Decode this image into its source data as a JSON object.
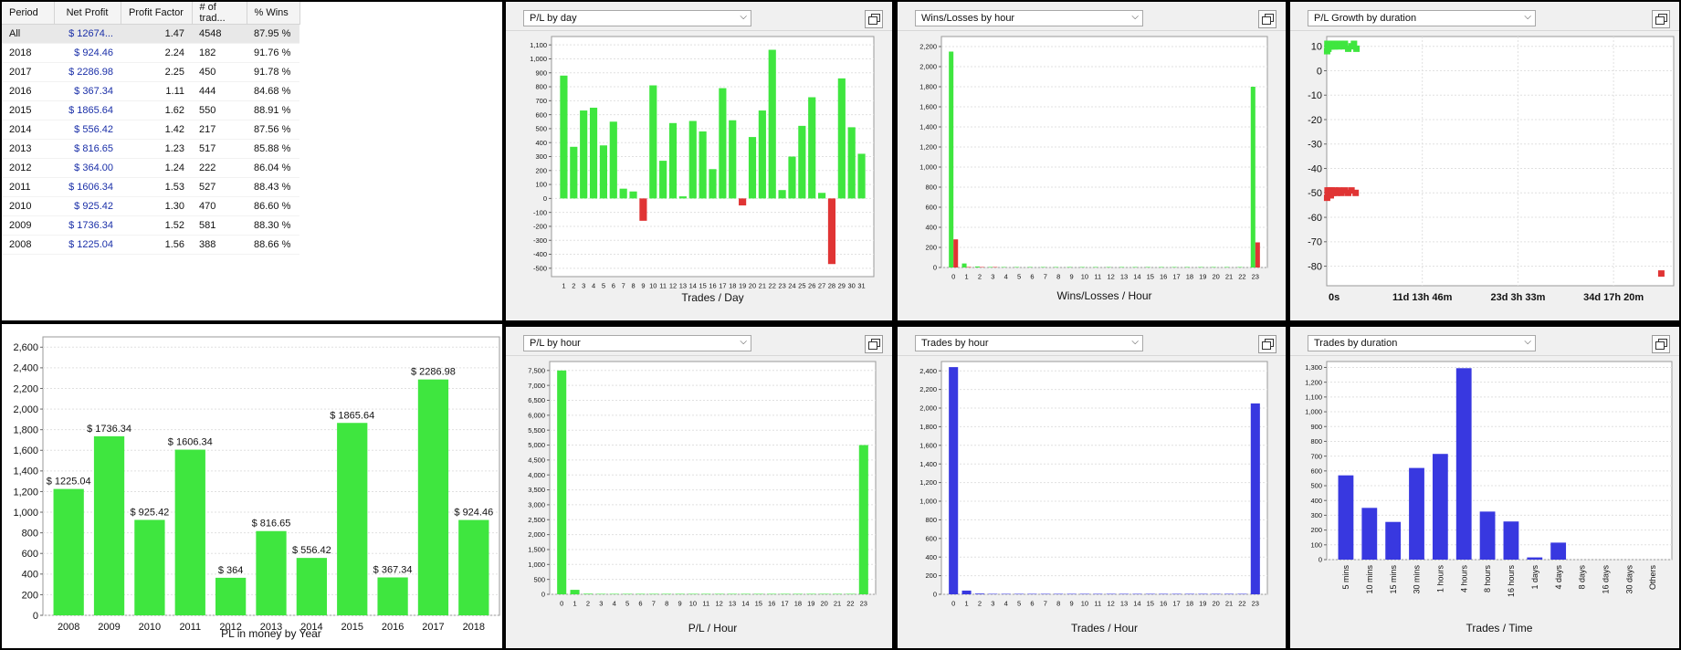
{
  "stats_table": {
    "headers": [
      "Period",
      "Net Profit",
      "Profit Factor",
      "# of trad...",
      "% Wins"
    ],
    "rows": [
      {
        "period": "All",
        "net_profit": "$ 12674...",
        "profit_factor": "1.47",
        "trades": "4548",
        "wins": "87.95 %"
      },
      {
        "period": "2018",
        "net_profit": "$ 924.46",
        "profit_factor": "2.24",
        "trades": "182",
        "wins": "91.76 %"
      },
      {
        "period": "2017",
        "net_profit": "$ 2286.98",
        "profit_factor": "2.25",
        "trades": "450",
        "wins": "91.78 %"
      },
      {
        "period": "2016",
        "net_profit": "$ 367.34",
        "profit_factor": "1.11",
        "trades": "444",
        "wins": "84.68 %"
      },
      {
        "period": "2015",
        "net_profit": "$ 1865.64",
        "profit_factor": "1.62",
        "trades": "550",
        "wins": "88.91 %"
      },
      {
        "period": "2014",
        "net_profit": "$ 556.42",
        "profit_factor": "1.42",
        "trades": "217",
        "wins": "87.56 %"
      },
      {
        "period": "2013",
        "net_profit": "$ 816.65",
        "profit_factor": "1.23",
        "trades": "517",
        "wins": "85.88 %"
      },
      {
        "period": "2012",
        "net_profit": "$ 364.00",
        "profit_factor": "1.24",
        "trades": "222",
        "wins": "86.04 %"
      },
      {
        "period": "2011",
        "net_profit": "$ 1606.34",
        "profit_factor": "1.53",
        "trades": "527",
        "wins": "88.43 %"
      },
      {
        "period": "2010",
        "net_profit": "$ 925.42",
        "profit_factor": "1.30",
        "trades": "470",
        "wins": "86.60 %"
      },
      {
        "period": "2009",
        "net_profit": "$ 1736.34",
        "profit_factor": "1.52",
        "trades": "581",
        "wins": "88.30 %"
      },
      {
        "period": "2008",
        "net_profit": "$ 1225.04",
        "profit_factor": "1.56",
        "trades": "388",
        "wins": "88.66 %"
      }
    ]
  },
  "panels": {
    "pl_by_day": {
      "selector": "P/L by day"
    },
    "wins_losses_by_hour": {
      "selector": "Wins/Losses by hour"
    },
    "pl_growth_by_duration": {
      "selector": "P/L Growth by duration"
    },
    "pl_by_hour": {
      "selector": "P/L by hour"
    },
    "trades_by_hour": {
      "selector": "Trades by hour"
    },
    "trades_by_duration": {
      "selector": "Trades by duration"
    }
  },
  "colors": {
    "positive": "#3fe63f",
    "negative": "#e03434",
    "blue": "#3838e0",
    "grid": "#e0e0e0"
  },
  "chart_data": [
    {
      "id": "pl_by_year",
      "type": "bar",
      "xlabel": "PL in money by Year",
      "categories": [
        "2008",
        "2009",
        "2010",
        "2011",
        "2012",
        "2013",
        "2014",
        "2015",
        "2016",
        "2017",
        "2018"
      ],
      "values": [
        1225.04,
        1736.34,
        925.42,
        1606.34,
        364,
        816.65,
        556.42,
        1865.64,
        367.34,
        2286.98,
        924.46
      ],
      "data_labels": [
        "$ 1225.04",
        "$ 1736.34",
        "$ 925.42",
        "$ 1606.34",
        "$ 364",
        "$ 816.65",
        "$ 556.42",
        "$ 1865.64",
        "$ 367.34",
        "$ 2286.98",
        "$ 924.46"
      ],
      "ylim": [
        0,
        2700
      ],
      "yticks": [
        0,
        200,
        400,
        600,
        800,
        1000,
        1200,
        1400,
        1600,
        1800,
        2000,
        2200,
        2400,
        2600
      ],
      "grid": true
    },
    {
      "id": "pl_by_day",
      "type": "bar",
      "xlabel": "Trades / Day",
      "categories": [
        "1",
        "2",
        "3",
        "4",
        "5",
        "6",
        "7",
        "8",
        "9",
        "10",
        "11",
        "12",
        "13",
        "14",
        "15",
        "16",
        "17",
        "18",
        "19",
        "20",
        "21",
        "22",
        "23",
        "24",
        "25",
        "26",
        "27",
        "28",
        "29",
        "30",
        "31"
      ],
      "values": [
        880,
        370,
        630,
        650,
        380,
        550,
        70,
        50,
        -160,
        810,
        270,
        540,
        15,
        555,
        480,
        210,
        790,
        560,
        -50,
        440,
        630,
        1065,
        60,
        300,
        520,
        725,
        40,
        -470,
        860,
        510,
        320
      ],
      "ylim": [
        -560,
        1160
      ],
      "yticks": [
        -500,
        -400,
        -300,
        -200,
        -100,
        0,
        100,
        200,
        300,
        400,
        500,
        600,
        700,
        800,
        900,
        1000,
        1100
      ],
      "grid": true
    },
    {
      "id": "wins_losses_by_hour",
      "type": "bar",
      "xlabel": "Wins/Losses / Hour",
      "categories": [
        "0",
        "1",
        "2",
        "3",
        "4",
        "5",
        "6",
        "7",
        "8",
        "9",
        "10",
        "11",
        "12",
        "13",
        "14",
        "15",
        "16",
        "17",
        "18",
        "19",
        "20",
        "21",
        "22",
        "23"
      ],
      "series": [
        {
          "values": [
            2150,
            40,
            10,
            5,
            2,
            2,
            2,
            2,
            2,
            2,
            2,
            2,
            2,
            2,
            2,
            2,
            2,
            2,
            2,
            2,
            2,
            2,
            2,
            1800
          ]
        },
        {
          "values": [
            280,
            5,
            2,
            1,
            0,
            0,
            0,
            0,
            0,
            0,
            0,
            0,
            0,
            0,
            0,
            0,
            0,
            0,
            0,
            0,
            0,
            0,
            0,
            250
          ]
        }
      ],
      "ylim": [
        0,
        2300
      ],
      "yticks": [
        0,
        200,
        400,
        600,
        800,
        1000,
        1200,
        1400,
        1600,
        1800,
        2000,
        2200
      ],
      "grid": true
    },
    {
      "id": "pl_growth_by_duration",
      "type": "scatter",
      "xlabels": [
        "0s",
        "11d 13h 46m",
        "23d 3h 33m",
        "34d 17h 20m"
      ],
      "series": [
        {
          "points": [
            [
              0.05,
              8
            ],
            [
              0.08,
              11
            ],
            [
              0.1,
              9
            ],
            [
              0.12,
              10
            ],
            [
              0.15,
              11
            ],
            [
              0.18,
              10
            ],
            [
              0.2,
              9
            ],
            [
              0.22,
              11
            ],
            [
              0.25,
              10
            ],
            [
              0.3,
              11
            ],
            [
              0.35,
              10
            ],
            [
              0.4,
              11
            ],
            [
              0.45,
              10
            ],
            [
              0.5,
              11
            ],
            [
              0.55,
              10
            ],
            [
              0.6,
              11
            ],
            [
              0.7,
              10
            ],
            [
              0.8,
              11
            ],
            [
              0.9,
              10
            ],
            [
              1.0,
              11
            ],
            [
              1.1,
              10
            ],
            [
              1.3,
              11
            ],
            [
              1.5,
              10
            ],
            [
              1.7,
              11
            ],
            [
              2.0,
              10
            ],
            [
              2.2,
              11
            ],
            [
              2.6,
              9
            ],
            [
              3.0,
              10
            ],
            [
              3.3,
              11
            ],
            [
              3.6,
              9
            ]
          ]
        },
        {
          "points": [
            [
              0.05,
              -52
            ],
            [
              0.1,
              -49
            ],
            [
              0.15,
              -50
            ],
            [
              0.2,
              -51
            ],
            [
              0.3,
              -49
            ],
            [
              0.4,
              -50
            ],
            [
              0.5,
              -51
            ],
            [
              0.6,
              -49
            ],
            [
              0.8,
              -50
            ],
            [
              1.0,
              -49
            ],
            [
              1.2,
              -50
            ],
            [
              1.5,
              -49
            ],
            [
              1.8,
              -50
            ],
            [
              2.2,
              -49
            ],
            [
              2.6,
              -50
            ],
            [
              3.0,
              -49
            ],
            [
              3.5,
              -50
            ],
            [
              40.5,
              -83
            ]
          ]
        }
      ],
      "xlim": [
        0,
        42
      ],
      "ylim": [
        -88,
        14
      ],
      "yticks": [
        10,
        0,
        -10,
        -20,
        -30,
        -40,
        -50,
        -60,
        -70,
        -80
      ],
      "grid": true
    },
    {
      "id": "pl_by_hour",
      "type": "bar",
      "xlabel": "P/L / Hour",
      "categories": [
        "0",
        "1",
        "2",
        "3",
        "4",
        "5",
        "6",
        "7",
        "8",
        "9",
        "10",
        "11",
        "12",
        "13",
        "14",
        "15",
        "16",
        "17",
        "18",
        "19",
        "20",
        "21",
        "22",
        "23"
      ],
      "values": [
        7500,
        150,
        20,
        10,
        5,
        5,
        5,
        5,
        5,
        5,
        5,
        5,
        5,
        5,
        5,
        5,
        5,
        5,
        5,
        5,
        5,
        5,
        5,
        5000
      ],
      "ylim": [
        0,
        7800
      ],
      "yticks": [
        0,
        500,
        1000,
        1500,
        2000,
        2500,
        3000,
        3500,
        4000,
        4500,
        5000,
        5500,
        6000,
        6500,
        7000,
        7500
      ],
      "grid": true
    },
    {
      "id": "trades_by_hour",
      "type": "bar",
      "xlabel": "Trades / Hour",
      "categories": [
        "0",
        "1",
        "2",
        "3",
        "4",
        "5",
        "6",
        "7",
        "8",
        "9",
        "10",
        "11",
        "12",
        "13",
        "14",
        "15",
        "16",
        "17",
        "18",
        "19",
        "20",
        "21",
        "22",
        "23"
      ],
      "values": [
        2440,
        40,
        8,
        4,
        2,
        2,
        2,
        2,
        2,
        2,
        2,
        2,
        2,
        2,
        2,
        2,
        2,
        2,
        2,
        2,
        2,
        2,
        2,
        2050
      ],
      "ylim": [
        0,
        2500
      ],
      "yticks": [
        0,
        200,
        400,
        600,
        800,
        1000,
        1200,
        1400,
        1600,
        1800,
        2000,
        2200,
        2400
      ],
      "grid": true
    },
    {
      "id": "trades_by_duration",
      "type": "bar",
      "xlabel": "Trades / Time",
      "categories": [
        "5 mins",
        "10 mins",
        "15 mins",
        "30 mins",
        "1 hours",
        "4 hours",
        "8 hours",
        "16 hours",
        "1 days",
        "4 days",
        "8 days",
        "16 days",
        "30 days",
        "Others"
      ],
      "values": [
        570,
        350,
        255,
        620,
        715,
        1295,
        325,
        258,
        15,
        115,
        0,
        0,
        0,
        0
      ],
      "ylim": [
        0,
        1340
      ],
      "yticks": [
        0,
        100,
        200,
        300,
        400,
        500,
        600,
        700,
        800,
        900,
        1000,
        1100,
        1200,
        1300
      ],
      "grid": true
    }
  ]
}
